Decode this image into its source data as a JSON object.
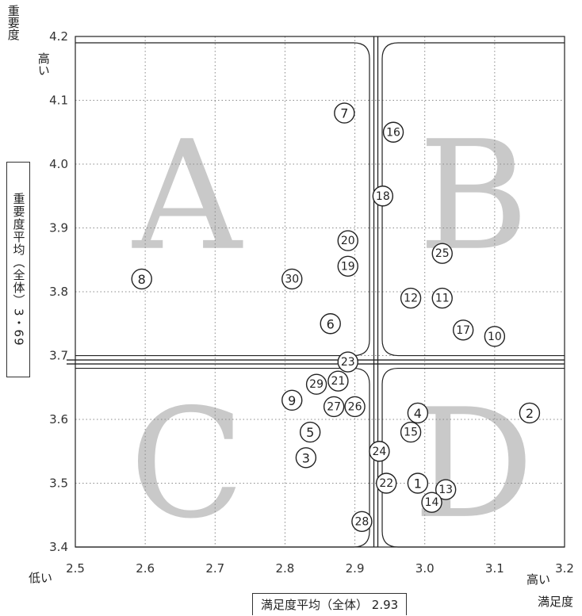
{
  "axis_text": {
    "y_axis_title": "重要度",
    "y_high": "高い",
    "x_low": "低い",
    "x_high": "高い",
    "x_axis_title": "満足度"
  },
  "averages": {
    "y_label": "重要度平均（全体）",
    "y_value": "3・69",
    "x_label": "満足度平均（全体）",
    "x_value": "2.93"
  },
  "chart_data": {
    "type": "scatter",
    "title": "",
    "xlabel": "満足度",
    "ylabel": "重要度",
    "xlim": [
      2.5,
      3.2
    ],
    "ylim": [
      3.4,
      4.2
    ],
    "x_ticks": [
      2.5,
      2.6,
      2.7,
      2.8,
      2.9,
      3.0,
      3.1,
      3.2
    ],
    "y_ticks": [
      3.4,
      3.5,
      3.6,
      3.7,
      3.8,
      3.9,
      4.0,
      4.1,
      4.2
    ],
    "x_tick_labels": [
      "2.5",
      "2.6",
      "2.7",
      "2.8",
      "2.9",
      "3.0",
      "3.1",
      "3.2"
    ],
    "y_tick_labels": [
      "3.4",
      "3.5",
      "3.6",
      "3.7",
      "3.8",
      "3.9",
      "4.0",
      "4.1",
      "4.2"
    ],
    "grid": true,
    "x_average": 2.93,
    "y_average": 3.69,
    "quadrants": [
      {
        "letter": "A",
        "x": 2.66,
        "y": 3.95
      },
      {
        "letter": "B",
        "x": 3.07,
        "y": 3.95
      },
      {
        "letter": "C",
        "x": 2.66,
        "y": 3.53
      },
      {
        "letter": "D",
        "x": 3.07,
        "y": 3.53
      }
    ],
    "points": [
      {
        "label": "1",
        "x": 2.99,
        "y": 3.5
      },
      {
        "label": "2",
        "x": 3.15,
        "y": 3.61
      },
      {
        "label": "3",
        "x": 2.83,
        "y": 3.54
      },
      {
        "label": "4",
        "x": 2.99,
        "y": 3.61
      },
      {
        "label": "5",
        "x": 2.836,
        "y": 3.58
      },
      {
        "label": "6",
        "x": 2.865,
        "y": 3.75
      },
      {
        "label": "7",
        "x": 2.885,
        "y": 4.08
      },
      {
        "label": "8",
        "x": 2.595,
        "y": 3.82
      },
      {
        "label": "9",
        "x": 2.81,
        "y": 3.63
      },
      {
        "label": "10",
        "x": 3.1,
        "y": 3.73
      },
      {
        "label": "11",
        "x": 3.025,
        "y": 3.79
      },
      {
        "label": "12",
        "x": 2.98,
        "y": 3.79
      },
      {
        "label": "13",
        "x": 3.03,
        "y": 3.49
      },
      {
        "label": "14",
        "x": 3.01,
        "y": 3.47
      },
      {
        "label": "15",
        "x": 2.98,
        "y": 3.58
      },
      {
        "label": "16",
        "x": 2.955,
        "y": 4.05
      },
      {
        "label": "17",
        "x": 3.055,
        "y": 3.74
      },
      {
        "label": "18",
        "x": 2.94,
        "y": 3.95
      },
      {
        "label": "19",
        "x": 2.89,
        "y": 3.84
      },
      {
        "label": "20",
        "x": 2.89,
        "y": 3.88
      },
      {
        "label": "21",
        "x": 2.876,
        "y": 3.66
      },
      {
        "label": "22",
        "x": 2.945,
        "y": 3.5
      },
      {
        "label": "23",
        "x": 2.89,
        "y": 3.69
      },
      {
        "label": "24",
        "x": 2.935,
        "y": 3.55
      },
      {
        "label": "25",
        "x": 3.025,
        "y": 3.86
      },
      {
        "label": "26",
        "x": 2.9,
        "y": 3.62
      },
      {
        "label": "27",
        "x": 2.87,
        "y": 3.62
      },
      {
        "label": "28",
        "x": 2.91,
        "y": 3.44
      },
      {
        "label": "29",
        "x": 2.845,
        "y": 3.655
      },
      {
        "label": "30",
        "x": 2.81,
        "y": 3.82
      }
    ]
  }
}
